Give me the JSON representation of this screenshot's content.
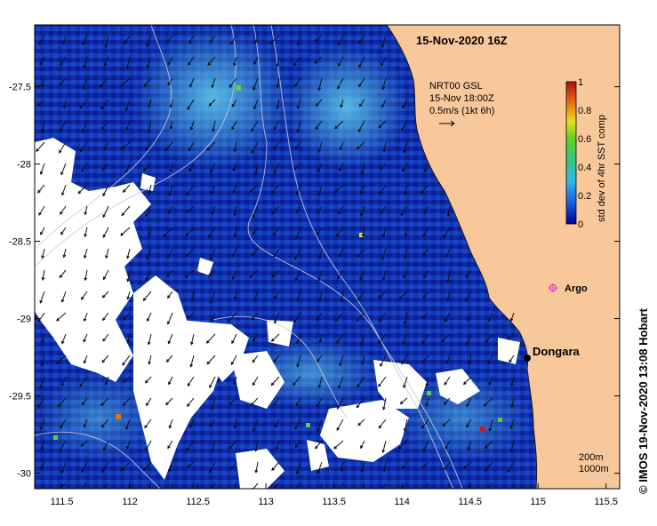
{
  "map": {
    "title": "15-Nov-2020 16Z",
    "wind_product": "NRT00 GSL",
    "wind_time": "15-Nov 18:00Z",
    "wind_scale": "0.5m/s (1kt 6h)",
    "colorbar_label": "std dev of 4hr SST comp",
    "colorbar_ticks": [
      "1",
      "0.8",
      "0.6",
      "0.4",
      "0.2",
      "0"
    ],
    "colorbar_range": [
      0,
      1
    ],
    "x_ticks": [
      "111.5",
      "112",
      "112.5",
      "113",
      "113.5",
      "114",
      "114.5",
      "115",
      "115.5"
    ],
    "y_ticks": [
      "-27.5",
      "-28",
      "-28.5",
      "-29",
      "-29.5",
      "-30"
    ],
    "lon_range": [
      111.3,
      115.6
    ],
    "lat_range": [
      -30.1,
      -27.1
    ],
    "places": [
      {
        "name": "Dongara",
        "lon": 114.93,
        "lat": -29.26
      },
      {
        "name": "Argo",
        "lon": 115.13,
        "lat": -28.82
      }
    ],
    "contour_legend": [
      "200m",
      "1000m"
    ],
    "credit": "© IMOS 19-Nov-2020 13:08 Hobart",
    "colors": {
      "land": "#f9c89a",
      "ocean_low": "#0a1a9a",
      "ocean_mid": "#1e66e6",
      "ocean_high": "#3fd0e0",
      "argo": "#e040e0",
      "no_data": "#ffffff"
    }
  }
}
